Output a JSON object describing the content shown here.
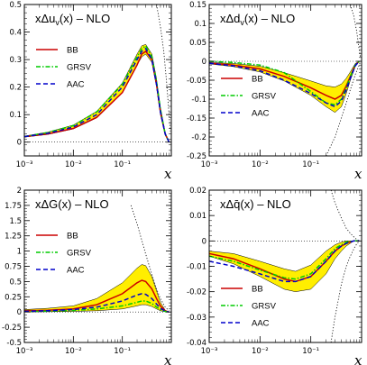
{
  "chart_data": [
    {
      "type": "line",
      "title": "xΔu_v(x) – NLO",
      "title_parts": {
        "pre": "xΔu",
        "sub": "v",
        "post": "(x) – NLO"
      },
      "xlabel": "x",
      "x_scale": "log",
      "xlim": [
        0.001,
        1
      ],
      "ylim": [
        -0.05,
        0.5
      ],
      "y_ticks": [
        "0",
        "0.1",
        "0.2",
        "0.3",
        "0.4",
        "0.5"
      ],
      "x_ticks": [
        "10⁻³",
        "10⁻²",
        "10⁻¹"
      ],
      "legend_position": "center-left",
      "series": [
        {
          "name": "BB",
          "color": "#cc0000",
          "style": "solid",
          "x": [
            0.001,
            0.003,
            0.01,
            0.03,
            0.1,
            0.2,
            0.25,
            0.3,
            0.4,
            0.5,
            0.6,
            0.75,
            0.9
          ],
          "y": [
            0.02,
            0.03,
            0.05,
            0.09,
            0.18,
            0.28,
            0.32,
            0.33,
            0.3,
            0.21,
            0.11,
            0.03,
            0.0
          ]
        },
        {
          "name": "GRSV",
          "color": "#00cc00",
          "style": "dashdot",
          "x": [
            0.001,
            0.003,
            0.01,
            0.03,
            0.1,
            0.2,
            0.25,
            0.3,
            0.4,
            0.5,
            0.6,
            0.75,
            0.9
          ],
          "y": [
            0.02,
            0.035,
            0.06,
            0.11,
            0.21,
            0.31,
            0.34,
            0.35,
            0.31,
            0.22,
            0.12,
            0.03,
            0.0
          ]
        },
        {
          "name": "AAC",
          "color": "#0000cc",
          "style": "dashed",
          "x": [
            0.001,
            0.003,
            0.01,
            0.03,
            0.1,
            0.2,
            0.25,
            0.3,
            0.4,
            0.5,
            0.6,
            0.75,
            0.9
          ],
          "y": [
            0.02,
            0.032,
            0.055,
            0.1,
            0.2,
            0.3,
            0.33,
            0.34,
            0.3,
            0.21,
            0.11,
            0.03,
            0.0
          ]
        }
      ],
      "band": {
        "color": "#ffee00",
        "x": [
          0.001,
          0.003,
          0.01,
          0.03,
          0.1,
          0.2,
          0.25,
          0.3,
          0.4,
          0.5,
          0.6,
          0.75,
          0.9
        ],
        "lower": [
          0.018,
          0.028,
          0.048,
          0.088,
          0.18,
          0.28,
          0.31,
          0.32,
          0.29,
          0.2,
          0.1,
          0.025,
          0.0
        ],
        "upper": [
          0.022,
          0.036,
          0.062,
          0.112,
          0.215,
          0.32,
          0.35,
          0.355,
          0.32,
          0.23,
          0.125,
          0.035,
          0.0
        ]
      },
      "positivity_bound": {
        "x": [
          0.5,
          0.6,
          0.7,
          0.8,
          0.9,
          0.95
        ],
        "y": [
          0.5,
          0.42,
          0.33,
          0.22,
          0.1,
          0.04
        ]
      }
    },
    {
      "type": "line",
      "title": "xΔd_v(x) – NLO",
      "title_parts": {
        "pre": "xΔd",
        "sub": "v",
        "post": "(x) – NLO"
      },
      "xlabel": "x",
      "x_scale": "log",
      "xlim": [
        0.001,
        1
      ],
      "ylim": [
        -0.25,
        0.15
      ],
      "y_ticks": [
        "-0.25",
        "-0.2",
        "-0.15",
        "-0.1",
        "-0.05",
        "0",
        "0.05",
        "0.1",
        "0.15"
      ],
      "x_ticks": [
        "10⁻³",
        "10⁻²",
        "10⁻¹"
      ],
      "legend_position": "center-left",
      "series": [
        {
          "name": "BB",
          "color": "#cc0000",
          "style": "solid",
          "x": [
            0.001,
            0.003,
            0.01,
            0.03,
            0.1,
            0.2,
            0.3,
            0.4,
            0.5,
            0.6,
            0.75,
            0.9
          ],
          "y": [
            -0.005,
            -0.01,
            -0.02,
            -0.04,
            -0.07,
            -0.09,
            -0.1,
            -0.09,
            -0.065,
            -0.04,
            -0.01,
            0.0
          ]
        },
        {
          "name": "GRSV",
          "color": "#00cc00",
          "style": "dashdot",
          "x": [
            0.001,
            0.003,
            0.01,
            0.03,
            0.1,
            0.2,
            0.3,
            0.4,
            0.5,
            0.6,
            0.75,
            0.9
          ],
          "y": [
            0.0,
            -0.003,
            -0.01,
            -0.03,
            -0.08,
            -0.11,
            -0.115,
            -0.1,
            -0.07,
            -0.04,
            -0.01,
            0.0
          ]
        },
        {
          "name": "AAC",
          "color": "#0000cc",
          "style": "dashed",
          "x": [
            0.001,
            0.003,
            0.01,
            0.03,
            0.1,
            0.2,
            0.3,
            0.4,
            0.5,
            0.6,
            0.75,
            0.9
          ],
          "y": [
            -0.005,
            -0.012,
            -0.025,
            -0.05,
            -0.085,
            -0.11,
            -0.12,
            -0.105,
            -0.075,
            -0.045,
            -0.012,
            0.0
          ]
        }
      ],
      "band": {
        "color": "#ffee00",
        "x": [
          0.001,
          0.003,
          0.01,
          0.03,
          0.1,
          0.2,
          0.3,
          0.4,
          0.5,
          0.6,
          0.75,
          0.9
        ],
        "lower": [
          -0.007,
          -0.014,
          -0.028,
          -0.052,
          -0.09,
          -0.12,
          -0.135,
          -0.12,
          -0.085,
          -0.05,
          -0.014,
          0.0
        ],
        "upper": [
          -0.003,
          -0.006,
          -0.013,
          -0.03,
          -0.052,
          -0.065,
          -0.068,
          -0.06,
          -0.045,
          -0.028,
          -0.006,
          0.0
        ]
      },
      "positivity_bound": {
        "x": [
          0.2,
          0.3,
          0.4,
          0.5,
          0.6,
          0.75,
          0.9,
          0.95
        ],
        "y": [
          -0.25,
          -0.2,
          -0.15,
          -0.11,
          -0.075,
          -0.035,
          -0.01,
          0.0
        ]
      },
      "positivity_bound_upper": {
        "x": [
          0.6,
          0.7,
          0.8,
          0.9,
          0.95
        ],
        "y": [
          0.15,
          0.12,
          0.08,
          0.03,
          0.01
        ]
      }
    },
    {
      "type": "line",
      "title": "xΔG(x) – NLO",
      "title_parts": {
        "pre": "xΔG",
        "sub": "",
        "post": "(x) – NLO"
      },
      "xlabel": "x",
      "x_scale": "log",
      "xlim": [
        0.001,
        1
      ],
      "ylim": [
        -0.5,
        2.0
      ],
      "y_ticks": [
        "-0.5",
        "-0.25",
        "0",
        "0.25",
        "0.5",
        "0.75",
        "1",
        "1.25",
        "1.5",
        "1.75",
        "2"
      ],
      "x_ticks": [
        "10⁻³",
        "10⁻²",
        "10⁻¹"
      ],
      "legend_position": "center-left",
      "series": [
        {
          "name": "BB",
          "color": "#cc0000",
          "style": "solid",
          "x": [
            0.001,
            0.003,
            0.01,
            0.03,
            0.1,
            0.2,
            0.25,
            0.3,
            0.4,
            0.5,
            0.6,
            0.75,
            0.9
          ],
          "y": [
            0.02,
            0.03,
            0.05,
            0.12,
            0.3,
            0.48,
            0.52,
            0.5,
            0.38,
            0.22,
            0.1,
            0.02,
            0.0
          ]
        },
        {
          "name": "GRSV",
          "color": "#00cc00",
          "style": "dashdot",
          "x": [
            0.001,
            0.003,
            0.01,
            0.03,
            0.1,
            0.2,
            0.25,
            0.3,
            0.4,
            0.5,
            0.6,
            0.75,
            0.9
          ],
          "y": [
            0.01,
            0.015,
            0.025,
            0.05,
            0.1,
            0.16,
            0.18,
            0.18,
            0.14,
            0.08,
            0.04,
            0.01,
            0.0
          ]
        },
        {
          "name": "AAC",
          "color": "#0000cc",
          "style": "dashed",
          "x": [
            0.001,
            0.003,
            0.01,
            0.03,
            0.1,
            0.2,
            0.25,
            0.3,
            0.4,
            0.5,
            0.6,
            0.75,
            0.9
          ],
          "y": [
            0.01,
            0.02,
            0.04,
            0.08,
            0.18,
            0.28,
            0.3,
            0.29,
            0.22,
            0.13,
            0.06,
            0.015,
            0.0
          ]
        }
      ],
      "band": {
        "color": "#ffee00",
        "x": [
          0.001,
          0.003,
          0.01,
          0.03,
          0.1,
          0.2,
          0.25,
          0.3,
          0.4,
          0.5,
          0.6,
          0.75,
          0.9
        ],
        "lower": [
          0.0,
          0.005,
          0.01,
          0.02,
          0.05,
          0.1,
          0.12,
          0.12,
          0.09,
          0.05,
          0.02,
          0.005,
          0.0
        ],
        "upper": [
          0.04,
          0.06,
          0.1,
          0.22,
          0.48,
          0.72,
          0.78,
          0.76,
          0.58,
          0.35,
          0.16,
          0.03,
          0.0
        ]
      },
      "positivity_bound": {
        "x": [
          0.15,
          0.2,
          0.3,
          0.4,
          0.5,
          0.6,
          0.75,
          0.9
        ],
        "y": [
          1.75,
          1.45,
          0.95,
          0.62,
          0.38,
          0.22,
          0.08,
          0.02
        ]
      }
    },
    {
      "type": "line",
      "title": "xΔq̄(x) – NLO",
      "title_parts": {
        "pre": "xΔq̄",
        "sub": "",
        "post": "(x) – NLO"
      },
      "xlabel": "x",
      "x_scale": "log",
      "xlim": [
        0.001,
        1
      ],
      "ylim": [
        -0.04,
        0.02
      ],
      "y_ticks": [
        "-0.04",
        "-0.03",
        "-0.02",
        "-0.01",
        "0",
        "0.01",
        "0.02"
      ],
      "x_ticks": [
        "10⁻³",
        "10⁻²",
        "10⁻¹"
      ],
      "legend_position": "bottom-left",
      "series": [
        {
          "name": "BB",
          "color": "#cc0000",
          "style": "solid",
          "x": [
            0.001,
            0.003,
            0.01,
            0.03,
            0.05,
            0.1,
            0.2,
            0.3,
            0.4,
            0.5,
            0.7,
            0.9
          ],
          "y": [
            -0.005,
            -0.007,
            -0.011,
            -0.015,
            -0.016,
            -0.014,
            -0.008,
            -0.004,
            -0.002,
            -0.001,
            0.0,
            0.0
          ]
        },
        {
          "name": "GRSV",
          "color": "#00cc00",
          "style": "dashdot",
          "x": [
            0.001,
            0.003,
            0.01,
            0.03,
            0.05,
            0.1,
            0.2,
            0.3,
            0.4,
            0.5,
            0.7,
            0.9
          ],
          "y": [
            -0.006,
            -0.008,
            -0.0115,
            -0.0145,
            -0.015,
            -0.013,
            -0.007,
            -0.003,
            -0.0015,
            -0.0005,
            0.0,
            0.0
          ]
        },
        {
          "name": "AAC",
          "color": "#0000cc",
          "style": "dashed",
          "x": [
            0.001,
            0.003,
            0.01,
            0.03,
            0.05,
            0.1,
            0.2,
            0.3,
            0.4,
            0.5,
            0.7,
            0.9
          ],
          "y": [
            -0.008,
            -0.01,
            -0.013,
            -0.016,
            -0.016,
            -0.014,
            -0.008,
            -0.004,
            -0.002,
            -0.001,
            0.0,
            0.0
          ]
        }
      ],
      "band": {
        "color": "#ffee00",
        "x": [
          0.001,
          0.003,
          0.01,
          0.03,
          0.05,
          0.1,
          0.2,
          0.3,
          0.4,
          0.5,
          0.7,
          0.9
        ],
        "lower": [
          -0.006,
          -0.009,
          -0.014,
          -0.019,
          -0.02,
          -0.019,
          -0.013,
          -0.007,
          -0.004,
          -0.002,
          0.0,
          0.0
        ],
        "upper": [
          -0.004,
          -0.005,
          -0.008,
          -0.011,
          -0.012,
          -0.0095,
          -0.004,
          -0.0015,
          -0.0005,
          0.0,
          0.0,
          0.0
        ]
      },
      "positivity_bound": {
        "x": [
          0.25,
          0.3,
          0.4,
          0.5,
          0.6,
          0.75,
          0.9
        ],
        "y": [
          -0.04,
          -0.03,
          -0.017,
          -0.01,
          -0.006,
          -0.002,
          0.0
        ]
      },
      "positivity_bound_upper": {
        "x": [
          0.25,
          0.3,
          0.4,
          0.5,
          0.6,
          0.75,
          0.9
        ],
        "y": [
          0.02,
          0.015,
          0.009,
          0.005,
          0.003,
          0.001,
          0.0
        ]
      }
    }
  ]
}
